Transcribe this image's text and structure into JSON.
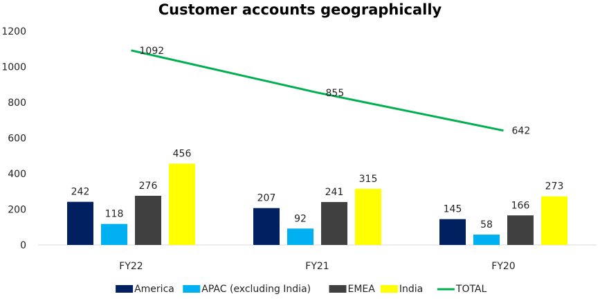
{
  "chart_data": {
    "type": "bar",
    "title": "Customer accounts geographically",
    "categories": [
      "FY22",
      "FY21",
      "FY20"
    ],
    "series": [
      {
        "name": "America",
        "type": "bar",
        "color": "#002060",
        "values": [
          242,
          207,
          145
        ]
      },
      {
        "name": "APAC (excluding India)",
        "type": "bar",
        "color": "#00B0F0",
        "values": [
          118,
          92,
          58
        ]
      },
      {
        "name": "EMEA",
        "type": "bar",
        "color": "#404040",
        "values": [
          276,
          241,
          166
        ]
      },
      {
        "name": "India",
        "type": "bar",
        "color": "#FFFF00",
        "values": [
          456,
          315,
          273
        ]
      },
      {
        "name": "TOTAL",
        "type": "line",
        "color": "#00B050",
        "values": [
          1092,
          855,
          642
        ]
      }
    ],
    "ylim": [
      0,
      1200
    ],
    "yticks": [
      0,
      200,
      400,
      600,
      800,
      1000,
      1200
    ],
    "grid": false,
    "legend": "bottom"
  }
}
